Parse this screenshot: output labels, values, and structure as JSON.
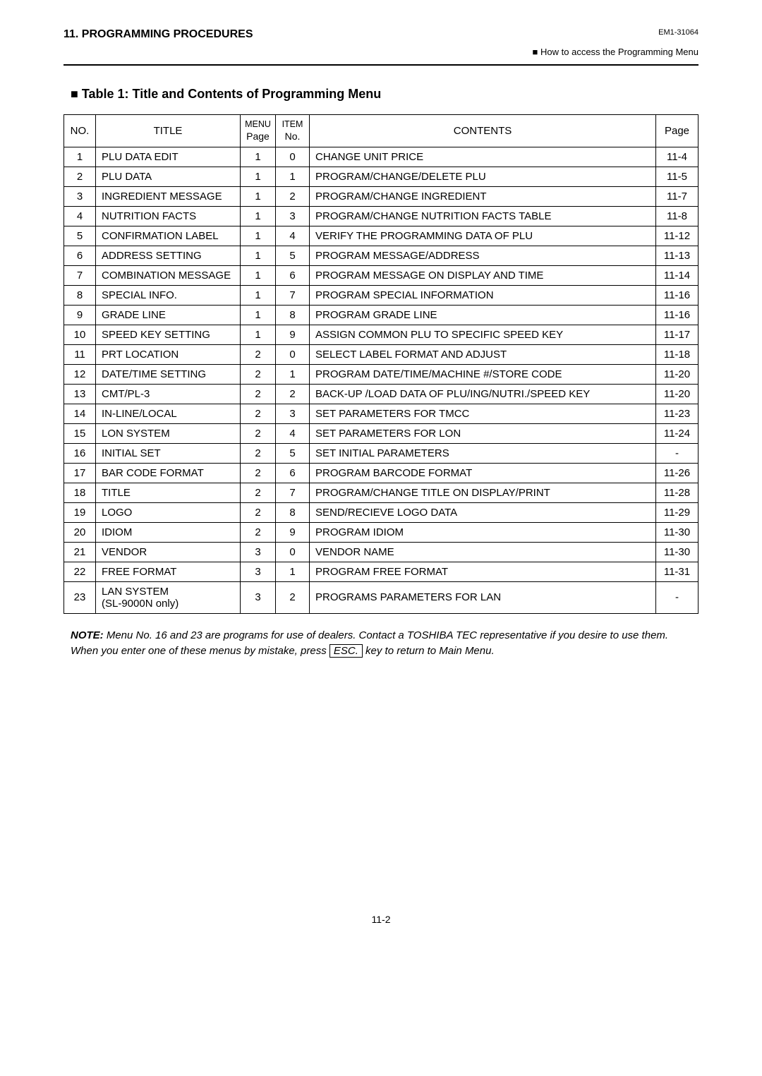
{
  "header": {
    "section": "11. PROGRAMMING PROCEDURES",
    "docCode": "EM1-31064",
    "subtitle": "■ How to access the Programming Menu"
  },
  "tableTitle": "■ Table 1:    Title and Contents of Programming Menu",
  "columns": {
    "no": "NO.",
    "title": "TITLE",
    "menuTop": "MENU",
    "menuBot": "Page",
    "itemTop": "ITEM",
    "itemBot": "No.",
    "contents": "CONTENTS",
    "page": "Page"
  },
  "rows": [
    {
      "no": "1",
      "title": "PLU DATA EDIT",
      "menu": "1",
      "item": "0",
      "contents": "CHANGE UNIT PRICE",
      "page": "11-4"
    },
    {
      "no": "2",
      "title": "PLU DATA",
      "menu": "1",
      "item": "1",
      "contents": "PROGRAM/CHANGE/DELETE PLU",
      "page": "11-5"
    },
    {
      "no": "3",
      "title": "INGREDIENT MESSAGE",
      "menu": "1",
      "item": "2",
      "contents": "PROGRAM/CHANGE INGREDIENT",
      "page": "11-7"
    },
    {
      "no": "4",
      "title": "NUTRITION FACTS",
      "menu": "1",
      "item": "3",
      "contents": "PROGRAM/CHANGE NUTRITION FACTS TABLE",
      "page": "11-8"
    },
    {
      "no": "5",
      "title": "CONFIRMATION LABEL",
      "menu": "1",
      "item": "4",
      "contents": "VERIFY THE PROGRAMMING DATA OF PLU",
      "page": "11-12"
    },
    {
      "no": "6",
      "title": "ADDRESS SETTING",
      "menu": "1",
      "item": "5",
      "contents": "PROGRAM MESSAGE/ADDRESS",
      "page": "11-13"
    },
    {
      "no": "7",
      "title": "COMBINATION MESSAGE",
      "menu": "1",
      "item": "6",
      "contents": "PROGRAM MESSAGE ON DISPLAY AND TIME",
      "page": "11-14"
    },
    {
      "no": "8",
      "title": "SPECIAL INFO.",
      "menu": "1",
      "item": "7",
      "contents": "PROGRAM SPECIAL INFORMATION",
      "page": "11-16"
    },
    {
      "no": "9",
      "title": "GRADE LINE",
      "menu": "1",
      "item": "8",
      "contents": "PROGRAM GRADE LINE",
      "page": "11-16"
    },
    {
      "no": "10",
      "title": "SPEED KEY SETTING",
      "menu": "1",
      "item": "9",
      "contents": "ASSIGN COMMON PLU TO SPECIFIC SPEED KEY",
      "page": "11-17"
    },
    {
      "no": "11",
      "title": "PRT LOCATION",
      "menu": "2",
      "item": "0",
      "contents": "SELECT LABEL FORMAT AND ADJUST",
      "page": "11-18"
    },
    {
      "no": "12",
      "title": "DATE/TIME SETTING",
      "menu": "2",
      "item": "1",
      "contents": "PROGRAM DATE/TIME/MACHINE #/STORE CODE",
      "page": "11-20"
    },
    {
      "no": "13",
      "title": "CMT/PL-3",
      "menu": "2",
      "item": "2",
      "contents": "BACK-UP /LOAD DATA OF PLU/ING/NUTRI./SPEED KEY",
      "page": "11-20"
    },
    {
      "no": "14",
      "title": "IN-LINE/LOCAL",
      "menu": "2",
      "item": "3",
      "contents": "SET PARAMETERS FOR TMCC",
      "page": "11-23"
    },
    {
      "no": "15",
      "title": "LON SYSTEM",
      "menu": "2",
      "item": "4",
      "contents": "SET PARAMETERS FOR LON",
      "page": "11-24"
    },
    {
      "no": "16",
      "title": "INITIAL SET",
      "menu": "2",
      "item": "5",
      "contents": "SET INITIAL PARAMETERS",
      "page": "-"
    },
    {
      "no": "17",
      "title": "BAR CODE FORMAT",
      "menu": "2",
      "item": "6",
      "contents": "PROGRAM BARCODE FORMAT",
      "page": "11-26"
    },
    {
      "no": "18",
      "title": "TITLE",
      "menu": "2",
      "item": "7",
      "contents": "PROGRAM/CHANGE TITLE ON DISPLAY/PRINT",
      "page": "11-28"
    },
    {
      "no": "19",
      "title": "LOGO",
      "menu": "2",
      "item": "8",
      "contents": "SEND/RECIEVE LOGO DATA",
      "page": "11-29"
    },
    {
      "no": "20",
      "title": "IDIOM",
      "menu": "2",
      "item": "9",
      "contents": "PROGRAM IDIOM",
      "page": "11-30"
    },
    {
      "no": "21",
      "title": "VENDOR",
      "menu": "3",
      "item": "0",
      "contents": "VENDOR NAME",
      "page": "11-30"
    },
    {
      "no": "22",
      "title": "FREE FORMAT",
      "menu": "3",
      "item": "1",
      "contents": "PROGRAM FREE FORMAT",
      "page": "11-31"
    },
    {
      "no": "23",
      "title": "LAN SYSTEM",
      "titleSub": "(SL-9000N only)",
      "menu": "3",
      "item": "2",
      "contents": "PROGRAMS PARAMETERS FOR LAN",
      "page": "-"
    }
  ],
  "note": {
    "label": "NOTE:",
    "text1": " Menu No. 16 and 23 are programs for use of dealers.  Contact a TOSHIBA TEC representative if you desire to use them.  When you enter one of these menus by mistake, press ",
    "key": "ESC.",
    "text2": " key to return to Main Menu."
  },
  "footer": {
    "page": "11-2"
  },
  "style": {
    "bodyBg": "#ffffff",
    "textColor": "#000000",
    "borderColor": "#000000"
  }
}
